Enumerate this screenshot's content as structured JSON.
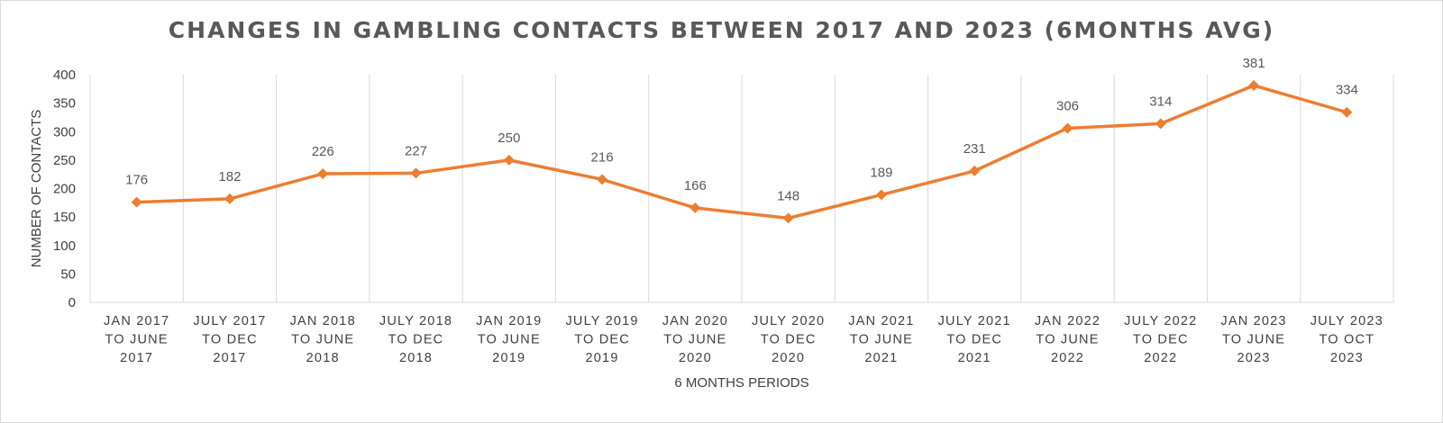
{
  "chart_data": {
    "type": "line",
    "title": "CHANGES IN GAMBLING CONTACTS BETWEEN 2017 AND 2023 (6MONTHS AVG)",
    "xlabel": "6 MONTHS PERIODS",
    "ylabel": "NUMBER OF CONTACTS",
    "ylim": [
      0,
      400
    ],
    "yticks": [
      0,
      50,
      100,
      150,
      200,
      250,
      300,
      350,
      400
    ],
    "categories": [
      [
        "JAN 2017",
        "TO JUNE",
        "2017"
      ],
      [
        "JULY 2017",
        "TO DEC",
        "2017"
      ],
      [
        "JAN 2018",
        "TO JUNE",
        "2018"
      ],
      [
        "JULY 2018",
        "TO DEC",
        "2018"
      ],
      [
        "JAN 2019",
        "TO JUNE",
        "2019"
      ],
      [
        "JULY 2019",
        "TO DEC",
        "2019"
      ],
      [
        "JAN 2020",
        "TO JUNE",
        "2020"
      ],
      [
        "JULY 2020",
        "TO DEC",
        "2020"
      ],
      [
        "JAN 2021",
        "TO JUNE",
        "2021"
      ],
      [
        "JULY 2021",
        "TO DEC",
        "2021"
      ],
      [
        "JAN 2022",
        "TO JUNE",
        "2022"
      ],
      [
        "JULY 2022",
        "TO DEC",
        "2022"
      ],
      [
        "JAN 2023",
        "TO JUNE",
        "2023"
      ],
      [
        "JULY 2023",
        "TO OCT",
        "2023"
      ]
    ],
    "series": [
      {
        "values": [
          176,
          182,
          226,
          227,
          250,
          216,
          166,
          148,
          189,
          231,
          306,
          314,
          381,
          334
        ],
        "color": "#ed7d31",
        "marker": "diamond"
      }
    ],
    "grid": "vertical",
    "data_labels": true,
    "legend": "none"
  }
}
